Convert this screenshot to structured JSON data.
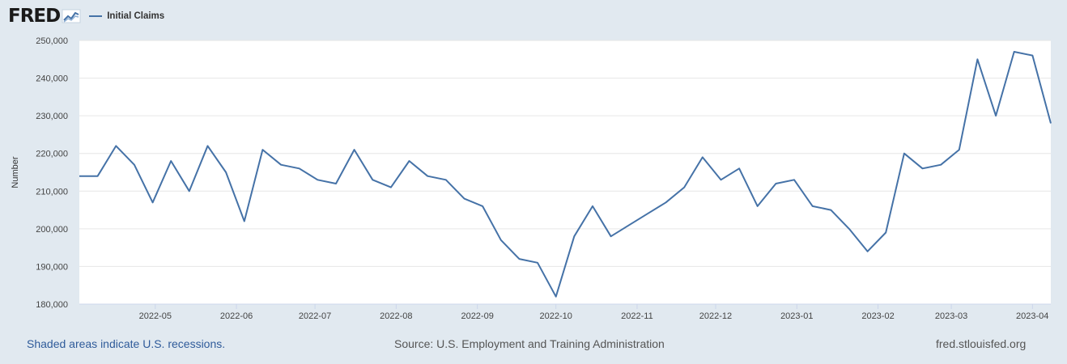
{
  "header": {
    "logo_text": "FRED",
    "logo_icon": "chart-line-icon",
    "series_name": "Initial Claims"
  },
  "colors": {
    "background": "#e1e9f0",
    "plot_background": "#ffffff",
    "series_line": "#4572a7",
    "gridline": "#e6e6e6",
    "link": "#2f5b9a"
  },
  "chart_data": {
    "type": "line",
    "ylabel": "Number",
    "xlabel": "",
    "ylim": [
      180000,
      250000
    ],
    "xlim": [
      "2022-04-02",
      "2023-04-08"
    ],
    "yticks": [
      180000,
      190000,
      200000,
      210000,
      220000,
      230000,
      240000,
      250000
    ],
    "ytick_labels": [
      "180,000",
      "190,000",
      "200,000",
      "210,000",
      "220,000",
      "230,000",
      "240,000",
      "250,000"
    ],
    "xticks": [
      "2022-05-01",
      "2022-06-01",
      "2022-07-01",
      "2022-08-01",
      "2022-09-01",
      "2022-10-01",
      "2022-11-01",
      "2022-12-01",
      "2023-01-01",
      "2023-02-01",
      "2023-03-01",
      "2023-04-01"
    ],
    "xtick_labels": [
      "2022-05",
      "2022-06",
      "2022-07",
      "2022-08",
      "2022-09",
      "2022-10",
      "2022-11",
      "2022-12",
      "2023-01",
      "2023-02",
      "2023-03",
      "2023-04"
    ],
    "grid": true,
    "legend": "top-left",
    "series": [
      {
        "name": "Initial Claims",
        "x": [
          "2022-04-02",
          "2022-04-09",
          "2022-04-16",
          "2022-04-23",
          "2022-04-30",
          "2022-05-07",
          "2022-05-14",
          "2022-05-21",
          "2022-05-28",
          "2022-06-04",
          "2022-06-11",
          "2022-06-18",
          "2022-06-25",
          "2022-07-02",
          "2022-07-09",
          "2022-07-16",
          "2022-07-23",
          "2022-07-30",
          "2022-08-06",
          "2022-08-13",
          "2022-08-20",
          "2022-08-27",
          "2022-09-03",
          "2022-09-10",
          "2022-09-17",
          "2022-09-24",
          "2022-10-01",
          "2022-10-08",
          "2022-10-15",
          "2022-10-22",
          "2022-10-29",
          "2022-11-05",
          "2022-11-12",
          "2022-11-19",
          "2022-11-26",
          "2022-12-03",
          "2022-12-10",
          "2022-12-17",
          "2022-12-24",
          "2022-12-31",
          "2023-01-07",
          "2023-01-14",
          "2023-01-21",
          "2023-01-28",
          "2023-02-04",
          "2023-02-11",
          "2023-02-18",
          "2023-02-25",
          "2023-03-04",
          "2023-03-11",
          "2023-03-18",
          "2023-03-25",
          "2023-04-01",
          "2023-04-08"
        ],
        "values": [
          214000,
          214000,
          222000,
          217000,
          207000,
          218000,
          210000,
          222000,
          215000,
          202000,
          221000,
          217000,
          216000,
          213000,
          212000,
          221000,
          213000,
          211000,
          218000,
          214000,
          213000,
          208000,
          206000,
          197000,
          192000,
          191000,
          182000,
          198000,
          206000,
          198000,
          201000,
          204000,
          207000,
          211000,
          219000,
          213000,
          216000,
          206000,
          212000,
          213000,
          206000,
          205000,
          200000,
          194000,
          199000,
          220000,
          216000,
          217000,
          221000,
          245000,
          230000,
          247000,
          246000,
          228000
        ]
      }
    ]
  },
  "footer": {
    "recession_note": "Shaded areas indicate U.S. recessions.",
    "source": "Source: U.S. Employment and Training Administration",
    "site": "fred.stlouisfed.org"
  }
}
